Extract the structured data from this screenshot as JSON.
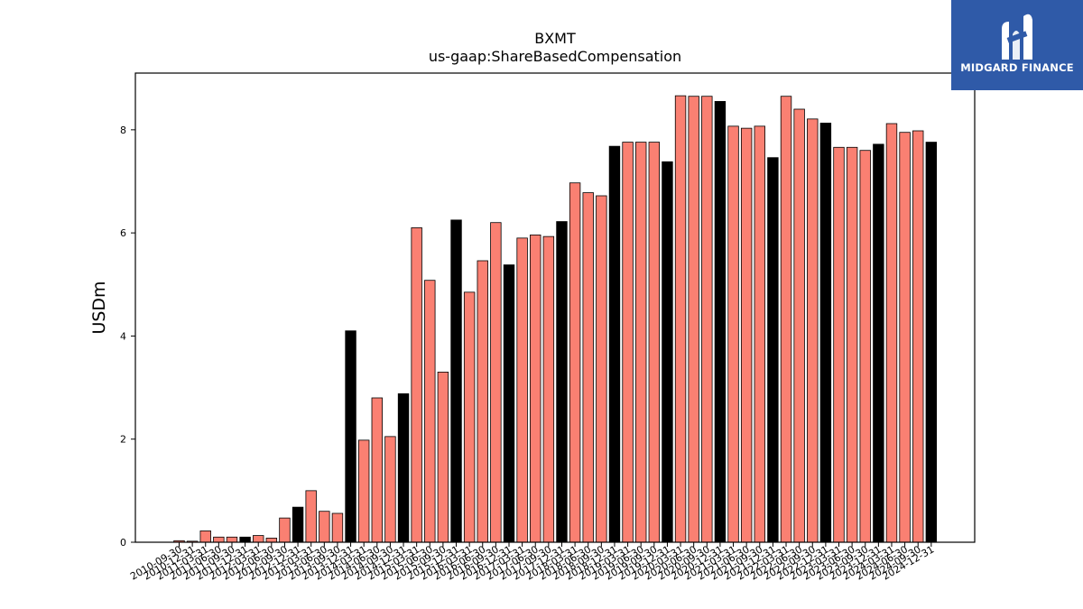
{
  "chart_data": {
    "type": "bar",
    "title": "BXMT",
    "subtitle": "us-gaap:ShareBasedCompensation",
    "xlabel": "",
    "ylabel": "USDm",
    "ylim": [
      0,
      9.1
    ],
    "yticks": [
      0,
      2,
      4,
      6,
      8
    ],
    "grid": false,
    "categories": [
      "2010-09-30",
      "2010-12-31",
      "2011-03-31",
      "2011-06-30",
      "2011-09-30",
      "2011-12-31",
      "2012-03-31",
      "2012-06-30",
      "2012-09-30",
      "2012-12-31",
      "2013-03-31",
      "2013-06-30",
      "2013-09-30",
      "2013-12-31",
      "2014-03-31",
      "2014-06-30",
      "2014-09-30",
      "2014-12-31",
      "2015-03-31",
      "2015-06-30",
      "2015-09-30",
      "2015-12-31",
      "2016-03-31",
      "2016-06-30",
      "2016-09-30",
      "2016-12-31",
      "2017-03-31",
      "2017-06-30",
      "2017-09-30",
      "2017-12-31",
      "2018-03-31",
      "2018-06-30",
      "2018-09-30",
      "2018-12-31",
      "2019-03-31",
      "2019-06-30",
      "2019-09-30",
      "2019-12-31",
      "2020-03-31",
      "2020-06-30",
      "2020-09-30",
      "2020-12-31",
      "2021-03-31",
      "2021-06-30",
      "2021-09-30",
      "2021-12-31",
      "2022-03-31",
      "2022-06-30",
      "2022-09-30",
      "2022-12-31",
      "2023-03-31",
      "2023-06-30",
      "2023-09-30",
      "2023-12-31",
      "2024-03-31",
      "2024-06-30",
      "2024-09-30",
      "2024-12-31"
    ],
    "values": [
      0.03,
      0.02,
      0.22,
      0.1,
      0.1,
      0.1,
      0.13,
      0.08,
      0.47,
      0.68,
      1.0,
      0.6,
      0.56,
      4.1,
      1.98,
      2.8,
      2.05,
      2.88,
      6.1,
      5.08,
      3.3,
      6.25,
      4.85,
      5.46,
      6.2,
      5.38,
      5.9,
      5.96,
      5.93,
      6.22,
      6.97,
      6.78,
      6.72,
      7.68,
      7.76,
      7.76,
      7.76,
      7.38,
      8.66,
      8.65,
      8.65,
      8.55,
      8.07,
      8.03,
      8.07,
      7.46,
      8.65,
      8.4,
      8.21,
      8.13,
      7.66,
      7.66,
      7.6,
      7.72,
      8.12,
      7.95,
      7.98,
      7.76
    ],
    "bar_roles": [
      "q",
      "q",
      "q",
      "q",
      "q",
      "fy",
      "q",
      "q",
      "q",
      "fy",
      "q",
      "q",
      "q",
      "fy",
      "q",
      "q",
      "q",
      "fy",
      "q",
      "q",
      "q",
      "fy",
      "q",
      "q",
      "q",
      "fy",
      "q",
      "q",
      "q",
      "fy",
      "q",
      "q",
      "q",
      "fy",
      "q",
      "q",
      "q",
      "fy",
      "q",
      "q",
      "q",
      "fy",
      "q",
      "q",
      "q",
      "fy",
      "q",
      "q",
      "q",
      "fy",
      "q",
      "q",
      "q",
      "fy",
      "q",
      "q",
      "q",
      "fy"
    ],
    "colors": {
      "quarter": "#fa8072",
      "fiscal_year_end": "#000000",
      "edge": "#000000"
    }
  },
  "brand": {
    "logo_text": "MIDGARD FINANCE",
    "logo_icon": "midgard-m-icon",
    "background": "#2f5aa8",
    "text_color": "#ffffff"
  }
}
